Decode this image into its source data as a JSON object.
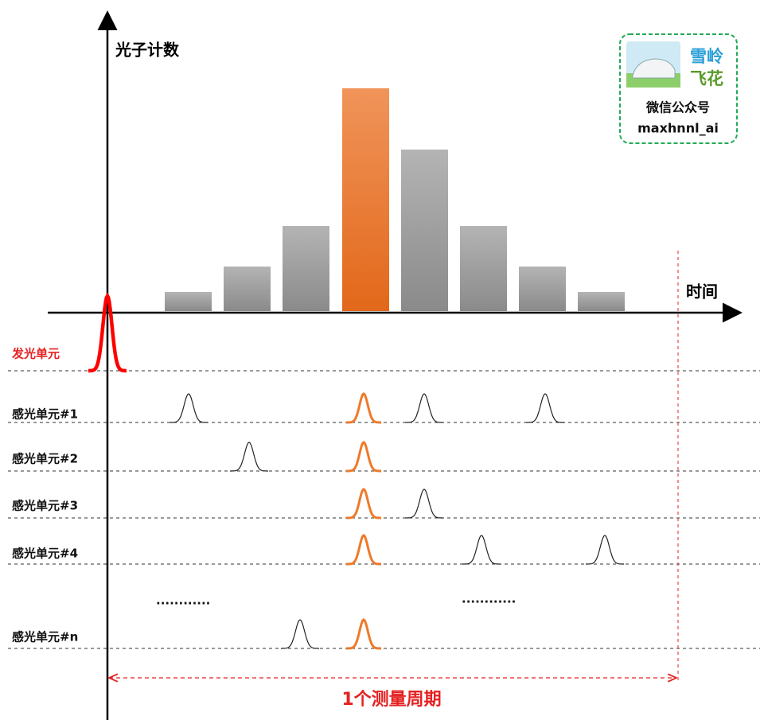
{
  "axes": {
    "y_label": "光子计数",
    "x_label": "时间"
  },
  "emitter": {
    "label": "发光单元"
  },
  "detectors": [
    {
      "label": "感光单元#1"
    },
    {
      "label": "感光单元#2"
    },
    {
      "label": "感光单元#3"
    },
    {
      "label": "感光单元#4"
    },
    {
      "label": "感光单元#n"
    }
  ],
  "ellipsis": [
    "............",
    "............"
  ],
  "period": {
    "label": "1个测量周期"
  },
  "watermark": {
    "name_top": "雪岭",
    "name_bottom": "飞花",
    "caption": "微信公众号",
    "account": "maxhnnl_ai"
  }
}
